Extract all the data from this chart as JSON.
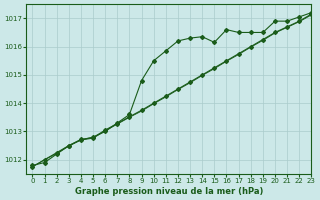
{
  "title": "Graphe pression niveau de la mer (hPa)",
  "xlabel": "Graphe pression niveau de la mer (hPa)",
  "bg_color": "#cce8e8",
  "grid_color": "#aacccc",
  "line_color": "#1a5c1a",
  "xlim": [
    -0.5,
    23
  ],
  "ylim": [
    1011.5,
    1017.5
  ],
  "yticks": [
    1012,
    1013,
    1014,
    1015,
    1016,
    1017
  ],
  "xticks": [
    0,
    1,
    2,
    3,
    4,
    5,
    6,
    7,
    8,
    9,
    10,
    11,
    12,
    13,
    14,
    15,
    16,
    17,
    18,
    19,
    20,
    21,
    22,
    23
  ],
  "series_bump": [
    1011.8,
    1011.9,
    1012.2,
    1012.5,
    1012.7,
    1012.8,
    1013.0,
    1013.3,
    1013.6,
    1014.8,
    1015.5,
    1015.85,
    1016.2,
    1016.3,
    1016.35,
    1016.15,
    1016.6,
    1016.5,
    1016.5,
    1016.5,
    1016.9,
    1016.9,
    1017.05,
    1017.2
  ],
  "series_linear1": [
    1011.75,
    1012.0,
    1012.25,
    1012.5,
    1012.72,
    1012.78,
    1013.05,
    1013.28,
    1013.52,
    1013.75,
    1014.0,
    1014.25,
    1014.5,
    1014.75,
    1015.0,
    1015.25,
    1015.5,
    1015.75,
    1016.0,
    1016.25,
    1016.5,
    1016.7,
    1016.9,
    1017.15
  ],
  "series_linear2": [
    1011.75,
    1012.0,
    1012.22,
    1012.48,
    1012.7,
    1012.76,
    1013.02,
    1013.26,
    1013.5,
    1013.72,
    1013.98,
    1014.22,
    1014.48,
    1014.72,
    1014.98,
    1015.22,
    1015.48,
    1015.72,
    1015.98,
    1016.22,
    1016.48,
    1016.68,
    1016.88,
    1017.12
  ],
  "marker": "D",
  "markersize": 2.0,
  "linewidth": 0.8
}
